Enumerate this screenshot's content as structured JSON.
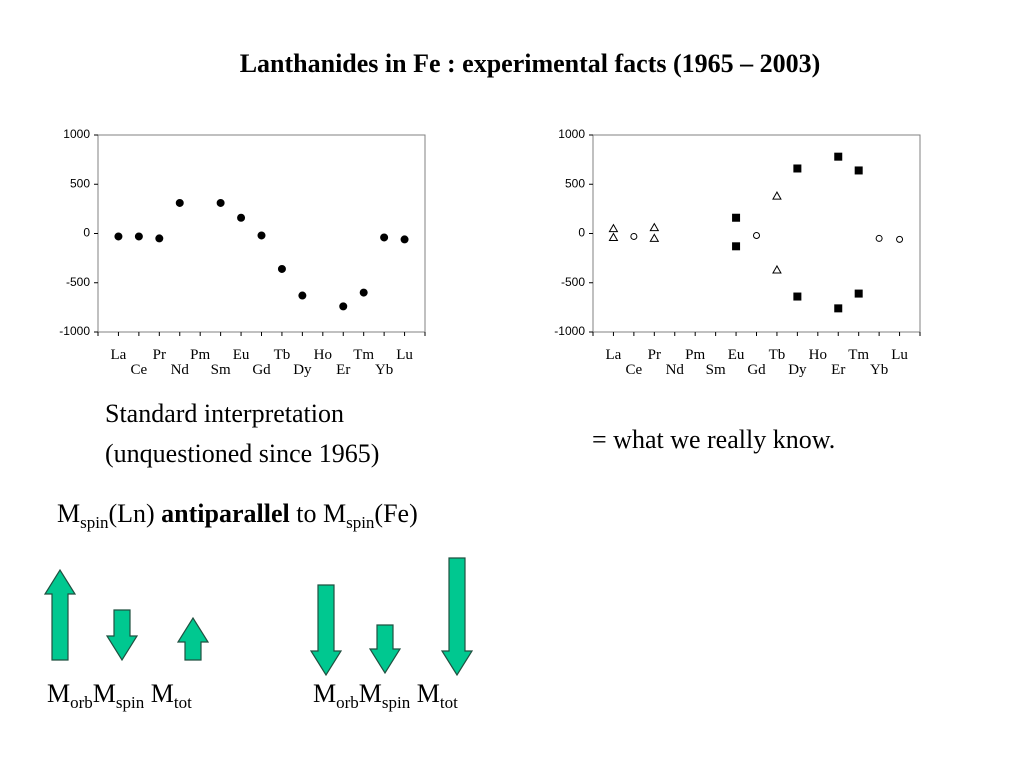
{
  "title": "Lanthanides in Fe : experimental facts (1965 – 2003)",
  "caption_left": [
    "Standard interpretation",
    "(unquestioned since 1965)"
  ],
  "caption_right": "= what we really know.",
  "statement": [
    "M",
    "spin",
    "(Ln)",
    "antiparallel",
    "to M",
    "spin",
    "(Fe)"
  ],
  "arrows_left_labels": [
    "M",
    "orb",
    "M",
    "spin",
    "M",
    "tot"
  ],
  "arrows_right_labels": [
    "M",
    "orb",
    "M",
    "spin",
    "M",
    "tot"
  ],
  "chart_data": [
    {
      "type": "scatter",
      "categories": [
        "La",
        "Ce",
        "Pr",
        "Nd",
        "Pm",
        "Sm",
        "Eu",
        "Gd",
        "Tb",
        "Dy",
        "Ho",
        "Er",
        "Tm",
        "Yb",
        "Lu"
      ],
      "ylim": [
        -1000,
        1000
      ],
      "yticks": [
        1000,
        500,
        0,
        -500,
        -1000
      ],
      "series": [
        {
          "marker": "circle",
          "filled": true,
          "color": "#000000",
          "values": [
            -30,
            -30,
            -50,
            310,
            null,
            310,
            160,
            -20,
            -360,
            -630,
            null,
            -740,
            -600,
            -40,
            -60
          ]
        }
      ]
    },
    {
      "type": "scatter",
      "categories": [
        "La",
        "Ce",
        "Pr",
        "Nd",
        "Pm",
        "Sm",
        "Eu",
        "Gd",
        "Tb",
        "Dy",
        "Ho",
        "Er",
        "Tm",
        "Yb",
        "Lu"
      ],
      "ylim": [
        -1000,
        1000
      ],
      "yticks": [
        1000,
        500,
        0,
        -500,
        -1000
      ],
      "series": [
        {
          "marker": "triangle",
          "filled": false,
          "color": "#000000",
          "values": [
            50,
            null,
            60,
            null,
            null,
            null,
            null,
            null,
            380,
            null,
            null,
            null,
            null,
            null,
            null
          ]
        },
        {
          "marker": "triangle",
          "filled": false,
          "color": "#000000",
          "values": [
            -40,
            null,
            -50,
            null,
            null,
            null,
            null,
            null,
            -370,
            null,
            null,
            null,
            null,
            null,
            null
          ]
        },
        {
          "marker": "circle",
          "filled": false,
          "color": "#000000",
          "values": [
            null,
            -30,
            null,
            null,
            null,
            null,
            null,
            -20,
            null,
            null,
            null,
            null,
            null,
            -50,
            -60
          ]
        },
        {
          "marker": "square",
          "filled": true,
          "color": "#000000",
          "values": [
            null,
            null,
            null,
            null,
            null,
            null,
            160,
            null,
            null,
            660,
            null,
            780,
            640,
            null,
            null
          ]
        },
        {
          "marker": "square",
          "filled": true,
          "color": "#000000",
          "values": [
            null,
            null,
            null,
            null,
            null,
            null,
            -130,
            null,
            null,
            -640,
            null,
            -760,
            -610,
            null,
            null
          ]
        }
      ]
    }
  ]
}
